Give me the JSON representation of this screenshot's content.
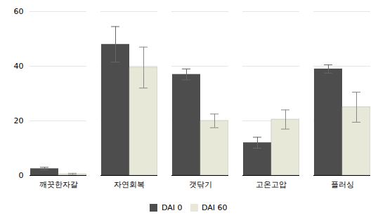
{
  "chart_data": {
    "type": "bar",
    "categories": [
      "깨끗한자갈",
      "자연회복",
      "갯닦기",
      "고온고압",
      "플러싱"
    ],
    "series": [
      {
        "name": "DAI 0",
        "color": "#4d4d4d",
        "values": [
          2.5,
          48.0,
          37.0,
          12.0,
          39.0
        ],
        "errors": [
          0.5,
          6.5,
          2.0,
          2.0,
          1.5
        ]
      },
      {
        "name": "DAI 60",
        "color": "#e8e8d8",
        "values": [
          0.5,
          39.5,
          20.0,
          20.5,
          25.0
        ],
        "errors": [
          0.3,
          7.5,
          2.5,
          3.5,
          5.5
        ]
      }
    ],
    "ylim": [
      0,
      60
    ],
    "yticks": [
      0,
      20,
      40,
      60
    ],
    "grid": true,
    "legend": "bottom"
  }
}
